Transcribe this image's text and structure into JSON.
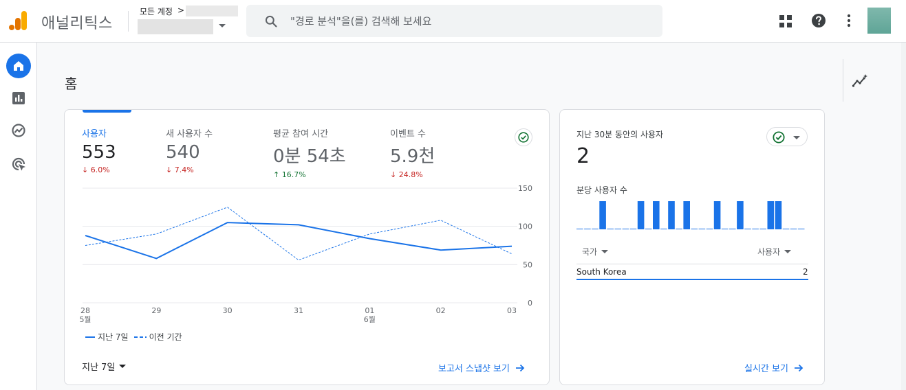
{
  "header": {
    "app_title": "애널리틱스",
    "account_label": "모든 계정",
    "account_chevron": ">",
    "search_placeholder": "\"경로 분석\"을(를) 검색해 보세요",
    "icons": [
      "analytics-logo-icon",
      "search-icon",
      "apps-grid-icon",
      "help-icon",
      "more-vert-icon"
    ],
    "brand_colors": {
      "orange": "#f9ab00",
      "dark_orange": "#e37400"
    }
  },
  "nav": {
    "items": [
      "home-icon",
      "reports-icon",
      "explore-icon",
      "advertising-icon"
    ],
    "active_color": "#1a73e8"
  },
  "page": {
    "title": "홈"
  },
  "overview": {
    "metrics": [
      {
        "label": "사용자",
        "value": "553",
        "delta": "6.0%",
        "direction": "down"
      },
      {
        "label": "새 사용자 수",
        "value": "540",
        "delta": "7.4%",
        "direction": "down"
      },
      {
        "label": "평균 참여 시간",
        "value": "0분 54초",
        "delta": "16.7%",
        "direction": "up"
      },
      {
        "label": "이벤트 수",
        "value": "5.9천",
        "delta": "24.8%",
        "direction": "down"
      }
    ],
    "period_label": "지난 7일",
    "snapshot_link": "보고서 스냅샷 보기",
    "legend": {
      "current": "지난 7일",
      "previous": "이전 기간"
    }
  },
  "chart_data": {
    "type": "line",
    "categories": [
      "28",
      "29",
      "30",
      "31",
      "01",
      "02",
      "03"
    ],
    "month_labels": {
      "0": "5월",
      "4": "6월"
    },
    "ylim": [
      0,
      150
    ],
    "yticks": [
      "0",
      "50",
      "100",
      "150"
    ],
    "grid": true,
    "series": [
      {
        "name": "지난 7일",
        "style": "solid",
        "color": "#1a73e8",
        "values": [
          88,
          58,
          105,
          102,
          84,
          69,
          74
        ]
      },
      {
        "name": "이전 기간",
        "style": "dashed",
        "color": "#1a73e8",
        "values": [
          75,
          90,
          125,
          56,
          90,
          108,
          64
        ]
      }
    ]
  },
  "realtime": {
    "title": "지난 30분 동안의 사용자",
    "value": "2",
    "subtitle": "분당 사용자 수",
    "per_minute": [
      0,
      0,
      0,
      1,
      0,
      0,
      0,
      0,
      1,
      0,
      1,
      0,
      1,
      0,
      1,
      0,
      0,
      0,
      1,
      0,
      0,
      1,
      0,
      0,
      0,
      1,
      1,
      0,
      0,
      0
    ],
    "columns": {
      "country": "국가",
      "users": "사용자"
    },
    "rows": [
      {
        "country": "South Korea",
        "users": "2"
      }
    ],
    "link": "실시간 보기"
  }
}
